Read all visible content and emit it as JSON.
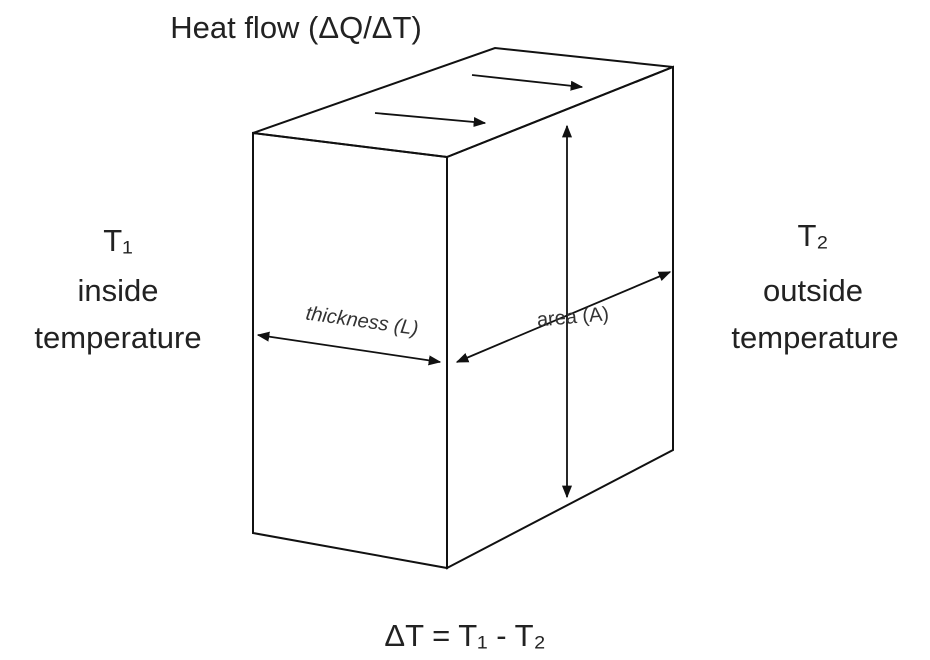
{
  "title": "Heat flow (ΔQ/ΔT)",
  "left": {
    "symbol": "T₁",
    "line1": "inside",
    "line2": "temperature"
  },
  "right": {
    "symbol": "T₂",
    "line1": "outside",
    "line2": "temperature"
  },
  "labels": {
    "thickness": "thickness (L)",
    "area": "area (A)"
  },
  "formula": "ΔT = T₁ - T₂"
}
